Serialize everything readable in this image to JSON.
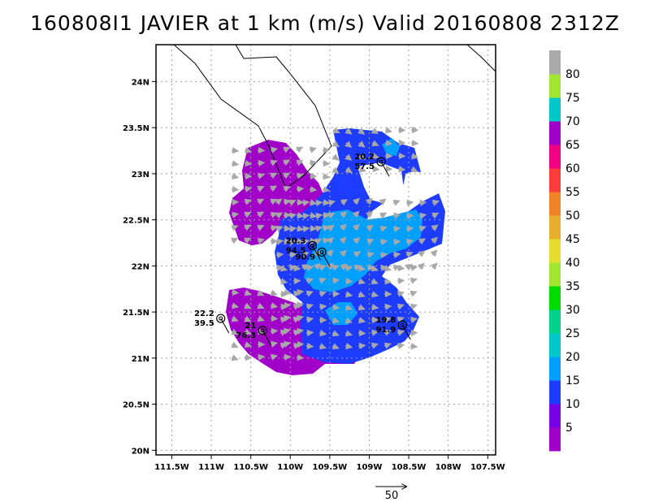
{
  "title": "160808I1 JAVIER at 1 km (m/s) Valid 20160808 2312Z",
  "map": {
    "lon_range": [
      -111.7,
      -107.4
    ],
    "lat_range": [
      19.95,
      24.4
    ],
    "lon_ticks": [
      {
        "v": -111.5,
        "label": "111.5W"
      },
      {
        "v": -111,
        "label": "111W"
      },
      {
        "v": -110.5,
        "label": "110.5W"
      },
      {
        "v": -110,
        "label": "110W"
      },
      {
        "v": -109.5,
        "label": "109.5W"
      },
      {
        "v": -109,
        "label": "109W"
      },
      {
        "v": -108.5,
        "label": "108.5W"
      },
      {
        "v": -108,
        "label": "108W"
      },
      {
        "v": -107.5,
        "label": "107.5W"
      }
    ],
    "lat_ticks": [
      {
        "v": 20,
        "label": "20N"
      },
      {
        "v": 20.5,
        "label": "20.5N"
      },
      {
        "v": 21,
        "label": "21N"
      },
      {
        "v": 21.5,
        "label": "21.5N"
      },
      {
        "v": 22,
        "label": "22N"
      },
      {
        "v": 22.5,
        "label": "22.5N"
      },
      {
        "v": 23,
        "label": "23N"
      },
      {
        "v": 23.5,
        "label": "23.5N"
      },
      {
        "v": 24,
        "label": "24N"
      }
    ],
    "grid": true
  },
  "colorbar": {
    "levels": [
      "5",
      "10",
      "15",
      "20",
      "25",
      "30",
      "35",
      "40",
      "45",
      "50",
      "55",
      "60",
      "65",
      "70",
      "75",
      "80"
    ],
    "colors": [
      "#a000c8",
      "#7800e6",
      "#1e3cff",
      "#00a0ff",
      "#00c8c8",
      "#00d28c",
      "#00dc00",
      "#a0e632",
      "#e6dc32",
      "#e6af2d",
      "#f08228",
      "#fa3c3c",
      "#f00082",
      "#a000c8",
      "#00c8c8",
      "#a0e632",
      "#aaaaaa"
    ]
  },
  "stations": [
    {
      "lon": -108.85,
      "lat": 23.13,
      "dir": "20.2",
      "spd": "57.5"
    },
    {
      "lon": -109.72,
      "lat": 22.22,
      "dir": "20.3",
      "spd": "94.5"
    },
    {
      "lon": -109.6,
      "lat": 22.15,
      "dir": "",
      "spd": "90.9"
    },
    {
      "lon": -108.58,
      "lat": 21.36,
      "dir": "19.8",
      "spd": "91.9"
    },
    {
      "lon": -110.88,
      "lat": 21.43,
      "dir": "22.2",
      "spd": "39.5"
    },
    {
      "lon": -110.35,
      "lat": 21.3,
      "dir": "21",
      "spd": "76.3"
    }
  ],
  "reference_vector": {
    "value": "50"
  }
}
